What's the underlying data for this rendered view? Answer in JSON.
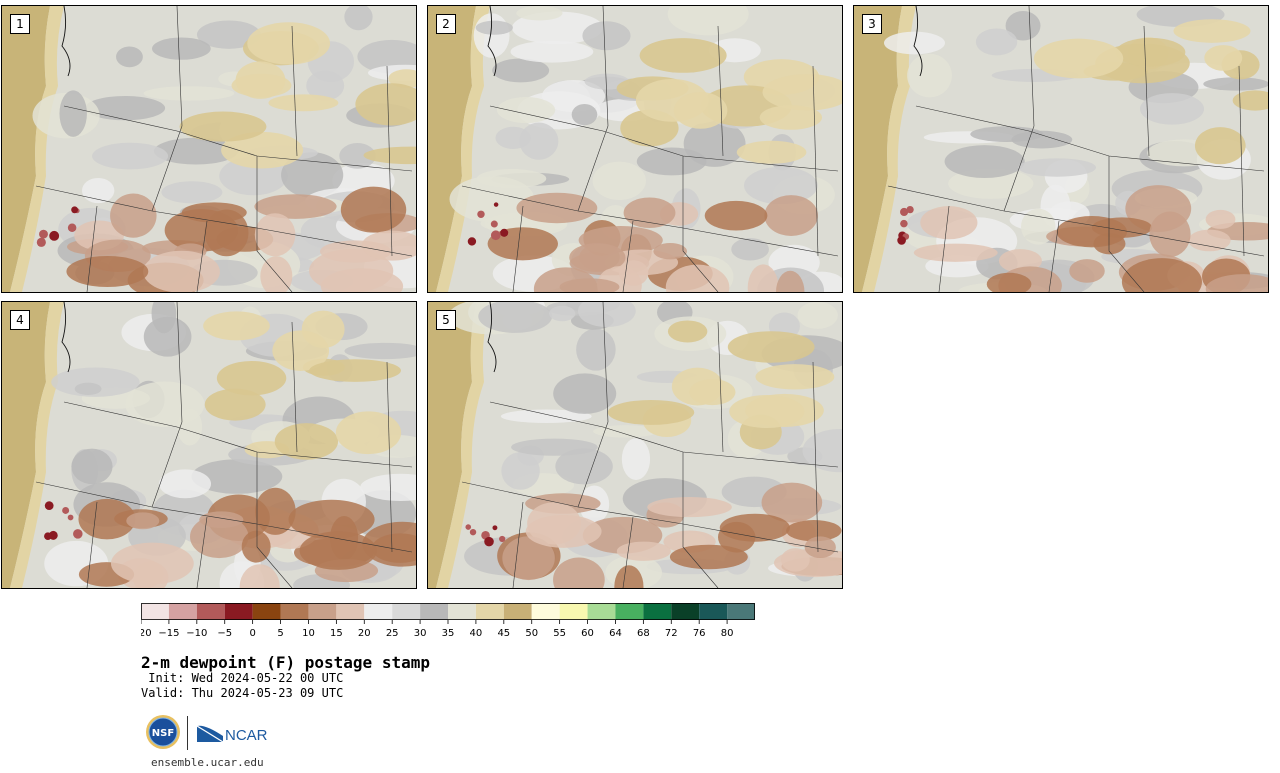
{
  "panels": [
    {
      "label": "1",
      "seed": 11
    },
    {
      "label": "2",
      "seed": 23
    },
    {
      "label": "3",
      "seed": 37
    },
    {
      "label": "4",
      "seed": 51
    },
    {
      "label": "5",
      "seed": 67
    }
  ],
  "colorbar": {
    "colors": [
      "#f2e4e4",
      "#d5a2a2",
      "#b25a5a",
      "#8a1a22",
      "#8a4410",
      "#b07854",
      "#c8a08a",
      "#e0c4b4",
      "#ededed",
      "#d9d9d9",
      "#b8b8b8",
      "#e3e3d6",
      "#e4d6a8",
      "#c8b076",
      "#fefbdc",
      "#f8f8b0",
      "#a8dc96",
      "#48b060",
      "#0a7040",
      "#0a4028",
      "#1a5858",
      "#4a7878"
    ],
    "tick_labels": [
      "−20",
      "−15",
      "−10",
      "−5",
      "0",
      "5",
      "10",
      "15",
      "20",
      "25",
      "30",
      "35",
      "40",
      "45",
      "50",
      "55",
      "60",
      "64",
      "68",
      "72",
      "76",
      "80"
    ]
  },
  "title": "2-m dewpoint (F) postage stamp",
  "init_line": " Init: Wed 2024-05-22 00 UTC",
  "valid_line": "Valid: Thu 2024-05-23 09 UTC",
  "logos": {
    "nsf_text": "NSF",
    "ncar_text": "NCAR"
  },
  "website": "ensemble.ucar.edu"
}
